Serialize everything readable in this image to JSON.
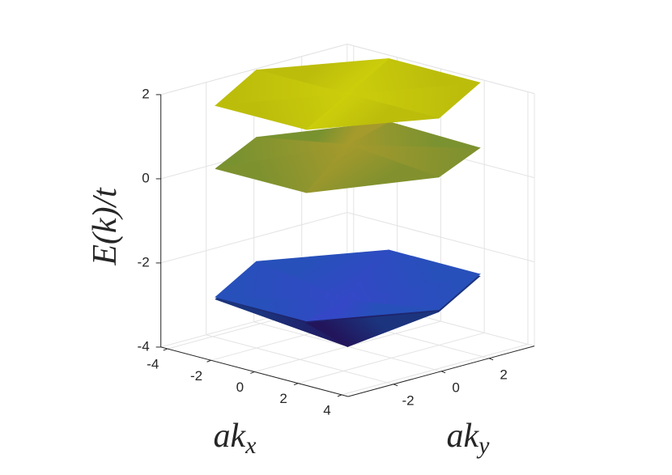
{
  "chart_data": {
    "type": "surface3d",
    "xlabel": [
      "ak",
      "x"
    ],
    "ylabel": [
      "ak",
      "y"
    ],
    "zlabel": "E(k)/t",
    "xlim": [
      -4.3,
      4.3
    ],
    "ylim": [
      -3.9,
      3.9
    ],
    "zlim": [
      -4,
      2
    ],
    "xticks": [
      -4,
      -2,
      0,
      2,
      4
    ],
    "yticks": [
      -2,
      0,
      2
    ],
    "zticks": [
      -4,
      -2,
      0,
      2
    ],
    "grid": true,
    "colormap": "parula",
    "series": [
      {
        "x": [
          0,
          4.19,
          2.09,
          -2.09,
          -4.19,
          -2.09,
          2.09
        ],
        "y": [
          0,
          0,
          3.63,
          3.63,
          0,
          -3.63,
          -3.63
        ],
        "z": [
          -4,
          -2.6,
          -2.6,
          -2.6,
          -2.6,
          -2.6,
          -2.6
        ]
      },
      {
        "x": [
          0,
          4.19,
          2.09,
          -2.09,
          -4.19,
          -2.09,
          2.09
        ],
        "y": [
          0,
          0,
          3.63,
          3.63,
          0,
          -3.63,
          -3.63
        ],
        "z": [
          -2.9,
          -2.55,
          -2.55,
          -2.55,
          -2.55,
          -2.55,
          -2.55
        ]
      },
      {
        "x": [
          0,
          4.19,
          2.09,
          -2.09,
          -4.19,
          -2.09,
          2.09
        ],
        "y": [
          0,
          0,
          3.63,
          3.63,
          0,
          -3.63,
          -3.63
        ],
        "z": [
          0.8,
          0.6,
          0.45,
          0.5,
          0.4,
          0.5,
          0.5
        ]
      },
      {
        "x": [
          0,
          4.19,
          2.09,
          -2.09,
          -4.19,
          -2.09,
          2.09
        ],
        "y": [
          0,
          0,
          3.63,
          3.63,
          0,
          -3.63,
          -3.63
        ],
        "z": [
          2,
          2,
          2,
          2,
          2,
          2,
          2
        ]
      }
    ]
  }
}
